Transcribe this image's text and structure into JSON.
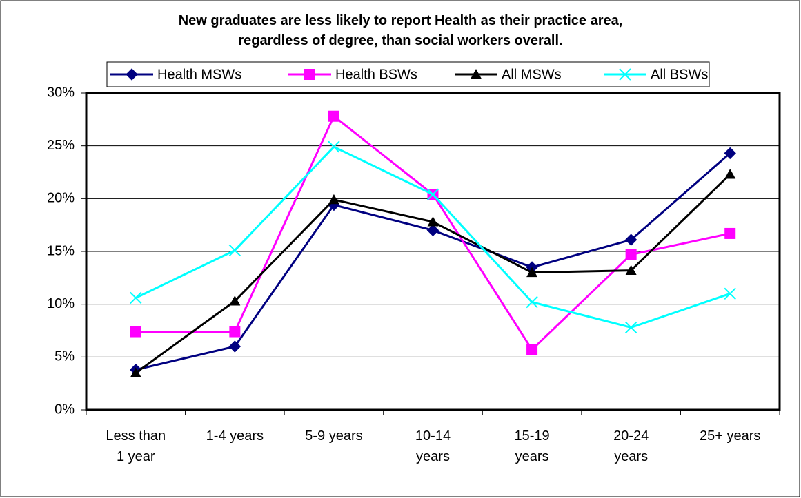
{
  "chart_data": {
    "type": "line",
    "title": "New graduates are less likely to report Health as their practice area,\nregardless of degree, than social workers overall.",
    "categories": [
      "Less than\n1 year",
      "1-4 years",
      "5-9 years",
      "10-14\nyears",
      "15-19\nyears",
      "20-24\nyears",
      "25+ years"
    ],
    "series": [
      {
        "name": "Health MSWs",
        "color": "#000080",
        "marker": "diamond",
        "values": [
          3.8,
          6.0,
          19.4,
          17.0,
          13.5,
          16.1,
          24.3
        ]
      },
      {
        "name": "Health BSWs",
        "color": "#FF00FF",
        "marker": "square",
        "values": [
          7.4,
          7.4,
          27.8,
          20.4,
          5.7,
          14.7,
          16.7
        ]
      },
      {
        "name": "All MSWs",
        "color": "#000000",
        "marker": "triangle",
        "values": [
          3.5,
          10.3,
          19.9,
          17.8,
          13.0,
          13.2,
          22.3
        ]
      },
      {
        "name": "All BSWs",
        "color": "#00FFFF",
        "marker": "x",
        "values": [
          10.6,
          15.1,
          24.9,
          20.4,
          10.2,
          7.8,
          11.0
        ]
      }
    ],
    "ylim": [
      0,
      30
    ],
    "yticks": [
      {
        "value": 0,
        "label": "0%"
      },
      {
        "value": 5,
        "label": "5%"
      },
      {
        "value": 10,
        "label": "10%"
      },
      {
        "value": 15,
        "label": "15%"
      },
      {
        "value": 20,
        "label": "20%"
      },
      {
        "value": 25,
        "label": "25%"
      },
      {
        "value": 30,
        "label": "30%"
      }
    ],
    "grid": true,
    "legend": "top"
  }
}
